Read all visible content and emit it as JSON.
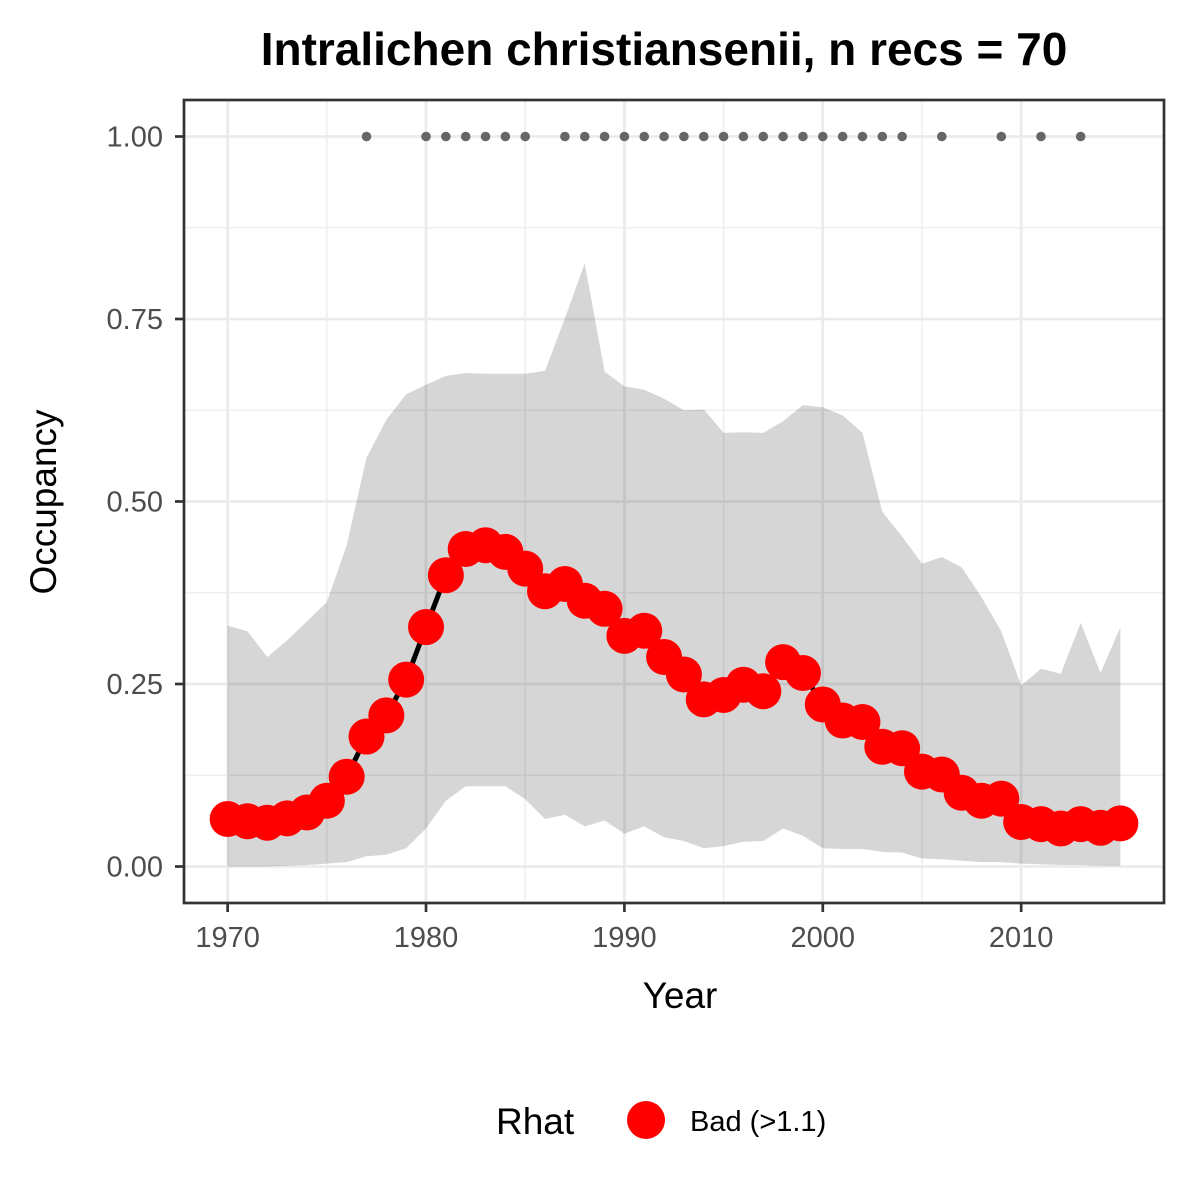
{
  "chart_data": {
    "type": "line",
    "title": "Intralichen christiansenii, n recs = 70",
    "xlabel": "Year",
    "ylabel": "Occupancy",
    "xlim": [
      1967.8,
      2017.2
    ],
    "ylim": [
      -0.05,
      1.05
    ],
    "x_ticks": [
      1970,
      1980,
      1990,
      2000,
      2010
    ],
    "x_tick_labels": [
      "1970",
      "1980",
      "1990",
      "2000",
      "2010"
    ],
    "y_ticks": [
      0,
      0.25,
      0.5,
      0.75,
      1.0
    ],
    "y_tick_labels": [
      "0.00",
      "0.25",
      "0.50",
      "0.75",
      "1.00"
    ],
    "grid": true,
    "legend": {
      "title": "Rhat",
      "placement": "bottom",
      "entries": [
        {
          "label": "Bad (>1.1)",
          "color": "#ff0000"
        }
      ]
    },
    "colors": {
      "points": "#ff0000",
      "line": "#000000",
      "ribbon": "#d6d6d6",
      "records": "#666666",
      "panel_border": "#333333",
      "grid": "#ebebeb"
    },
    "years": [
      1970,
      1971,
      1972,
      1973,
      1974,
      1975,
      1976,
      1977,
      1978,
      1979,
      1980,
      1981,
      1982,
      1983,
      1984,
      1985,
      1986,
      1987,
      1988,
      1989,
      1990,
      1991,
      1992,
      1993,
      1994,
      1995,
      1996,
      1997,
      1998,
      1999,
      2000,
      2001,
      2002,
      2003,
      2004,
      2005,
      2006,
      2007,
      2008,
      2009,
      2010,
      2011,
      2012,
      2013,
      2014,
      2015
    ],
    "occupancy": [
      0.065,
      0.062,
      0.06,
      0.066,
      0.074,
      0.09,
      0.123,
      0.178,
      0.207,
      0.256,
      0.328,
      0.399,
      0.435,
      0.44,
      0.431,
      0.408,
      0.377,
      0.387,
      0.364,
      0.353,
      0.316,
      0.323,
      0.287,
      0.263,
      0.229,
      0.235,
      0.249,
      0.24,
      0.28,
      0.265,
      0.222,
      0.2,
      0.198,
      0.164,
      0.162,
      0.13,
      0.126,
      0.101,
      0.09,
      0.093,
      0.061,
      0.058,
      0.052,
      0.058,
      0.053,
      0.059
    ],
    "lower_ci": [
      0.0,
      0.0,
      0.0,
      0.001,
      0.002,
      0.004,
      0.006,
      0.014,
      0.016,
      0.025,
      0.052,
      0.09,
      0.11,
      0.11,
      0.11,
      0.092,
      0.065,
      0.071,
      0.055,
      0.063,
      0.045,
      0.055,
      0.04,
      0.035,
      0.025,
      0.028,
      0.034,
      0.035,
      0.052,
      0.042,
      0.025,
      0.024,
      0.024,
      0.02,
      0.019,
      0.011,
      0.01,
      0.008,
      0.006,
      0.006,
      0.004,
      0.003,
      0.002,
      0.002,
      0.001,
      0.001
    ],
    "upper_ci": [
      0.33,
      0.322,
      0.287,
      0.31,
      0.336,
      0.362,
      0.44,
      0.56,
      0.612,
      0.647,
      0.66,
      0.672,
      0.676,
      0.675,
      0.675,
      0.675,
      0.679,
      0.751,
      0.826,
      0.678,
      0.658,
      0.653,
      0.641,
      0.625,
      0.626,
      0.594,
      0.595,
      0.594,
      0.61,
      0.632,
      0.629,
      0.618,
      0.594,
      0.486,
      0.452,
      0.415,
      0.424,
      0.41,
      0.369,
      0.322,
      0.248,
      0.271,
      0.264,
      0.334,
      0.265,
      0.328
    ],
    "record_years": [
      1977,
      1980,
      1981,
      1982,
      1983,
      1984,
      1985,
      1987,
      1988,
      1989,
      1990,
      1991,
      1992,
      1993,
      1994,
      1995,
      1996,
      1997,
      1998,
      1999,
      2000,
      2001,
      2002,
      2003,
      2004,
      2006,
      2009,
      2011,
      2013
    ],
    "record_value": 1.0
  }
}
